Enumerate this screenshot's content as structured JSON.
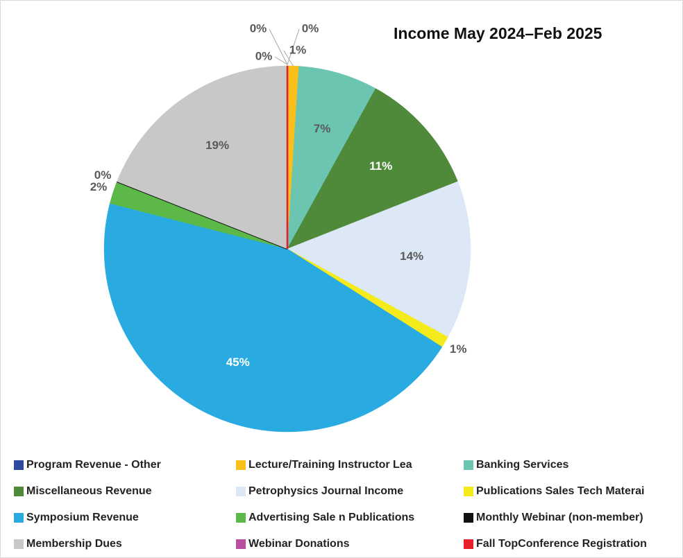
{
  "chart_data": {
    "type": "pie",
    "title": "Income  May 2024–Feb 2025",
    "categories": [
      "Program Revenue - Other",
      "Lecture/Training Instructor Lea",
      "Banking Services",
      "Miscellaneous Revenue",
      "Petrophysics Journal Income",
      "Publications Sales Tech Materai",
      "Symposium Revenue",
      "Advertising Sale n Publications",
      "Monthly Webinar (non-member)",
      "Membership Dues",
      "Webinar Donations",
      "Fall TopConference Registration"
    ],
    "values": [
      0,
      1,
      7,
      11,
      14,
      1,
      45,
      2,
      0,
      19,
      0,
      0
    ],
    "value_labels": [
      "0%",
      "1%",
      "7%",
      "11%",
      "14%",
      "1%",
      "45%",
      "2%",
      "0%",
      "19%",
      "0%",
      "0%"
    ],
    "colors": [
      "#2e4a9e",
      "#fbbf1a",
      "#6cc5b0",
      "#4e8a3a",
      "#dce8f5",
      "#f5eb1c",
      "#29abe2",
      "#5cb947",
      "#111111",
      "#c8c8c8",
      "#b84fa0",
      "#e8202a"
    ],
    "legend": "bottom"
  }
}
